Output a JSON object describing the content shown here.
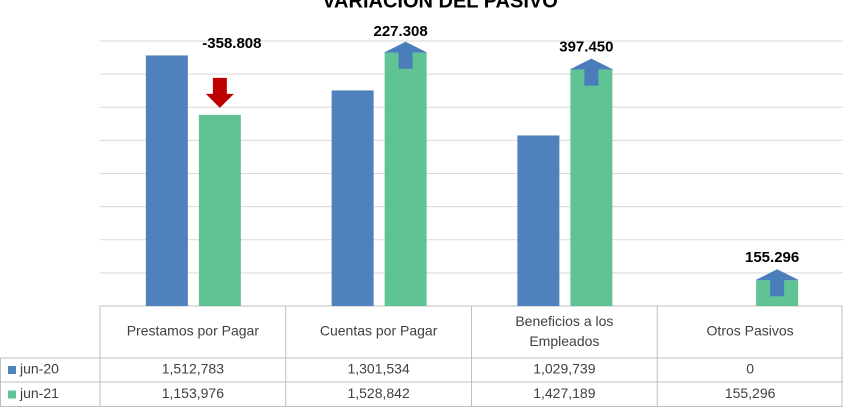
{
  "chart_data": {
    "type": "bar",
    "title": "VARIACIÓN DEL PASIVO",
    "categories": [
      "Prestamos por Pagar",
      "Cuentas por Pagar",
      "Beneficios a los Empleados",
      "Otros Pasivos"
    ],
    "series": [
      {
        "name": "jun-20",
        "color": "#4f81bd",
        "values": [
          1512783,
          1301534,
          1029739,
          0
        ],
        "value_labels": [
          "1,512,783",
          "1,301,534",
          "1,029,739",
          "0"
        ]
      },
      {
        "name": "jun-21",
        "color": "#60c394",
        "values": [
          1153976,
          1528842,
          1427189,
          155296
        ],
        "value_labels": [
          "1,153,976",
          "1,528,842",
          "1,427,189",
          "155,296"
        ]
      }
    ],
    "annotations": [
      "-358.808",
      "227.308",
      "397.450",
      "155.296"
    ],
    "ylim": [
      0,
      1600000
    ],
    "yticks": [
      0,
      200000,
      400000,
      600000,
      800000,
      1000000,
      1200000,
      1400000,
      1600000
    ],
    "grid": true
  }
}
